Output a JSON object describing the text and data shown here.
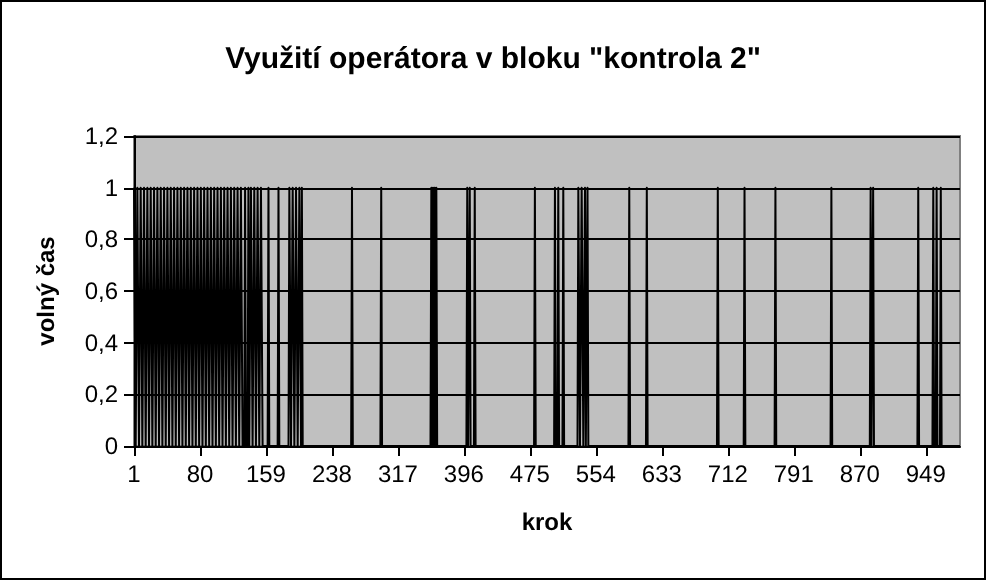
{
  "chart_data": {
    "type": "line",
    "title": "Využití operátora v bloku \"kontrola 2\"",
    "xlabel": "krok",
    "ylabel": "volný čas",
    "x": [
      1,
      3,
      5,
      7,
      9,
      11,
      13,
      15,
      17,
      19,
      21,
      23,
      25,
      27,
      29,
      31,
      33,
      35,
      37,
      39,
      41,
      43,
      45,
      47,
      49,
      51,
      53,
      55,
      57,
      59,
      61,
      63,
      65,
      67,
      69,
      71,
      73,
      75,
      77,
      79,
      81,
      83,
      85,
      87,
      89,
      91,
      93,
      95,
      97,
      99,
      101,
      103,
      105,
      107,
      109,
      111,
      113,
      115,
      117,
      119,
      121,
      123,
      125,
      127,
      129,
      131,
      133,
      134,
      135,
      137,
      138,
      139,
      141,
      143,
      145,
      147,
      149,
      151,
      153,
      155,
      161,
      162,
      163,
      173,
      174,
      175,
      186,
      187,
      189,
      191,
      193,
      195,
      197,
      199,
      201,
      202,
      203,
      261,
      262,
      263,
      296,
      297,
      298,
      356,
      357,
      358,
      359,
      360,
      361,
      362,
      363,
      364,
      399,
      400,
      401,
      402,
      403,
      404,
      408,
      409,
      410,
      480,
      481,
      482,
      504,
      505,
      506,
      508,
      509,
      510,
      514,
      515,
      516,
      532,
      533,
      535,
      537,
      539,
      541,
      542,
      543,
      544,
      545,
      593,
      594,
      595,
      614,
      615,
      616,
      699,
      700,
      701,
      731,
      732,
      733,
      768,
      769,
      770,
      835,
      836,
      837,
      882,
      883,
      884,
      885,
      886,
      887,
      939,
      940,
      941,
      957,
      958,
      959,
      961,
      962,
      963,
      966,
      967,
      968,
      990
    ],
    "series": [
      {
        "color": "#000000",
        "values": [
          1,
          0,
          1,
          0,
          1,
          0,
          1,
          0,
          1,
          0,
          1,
          0,
          1,
          0,
          1,
          0,
          1,
          0,
          1,
          0,
          1,
          0,
          1,
          0,
          1,
          0,
          1,
          0,
          1,
          0,
          1,
          0,
          1,
          0,
          1,
          0,
          1,
          0,
          1,
          0,
          1,
          0,
          1,
          0,
          1,
          0,
          1,
          0,
          1,
          0,
          1,
          0,
          1,
          0,
          1,
          0,
          1,
          0,
          1,
          0,
          1,
          0,
          1,
          0,
          1,
          0,
          0,
          1,
          0,
          0,
          1,
          0,
          1,
          0,
          1,
          0,
          1,
          0,
          1,
          0,
          0,
          1,
          0,
          0,
          1,
          0,
          0,
          1,
          0,
          1,
          0,
          1,
          0,
          1,
          0,
          1,
          0,
          0,
          1,
          0,
          0,
          1,
          0,
          0,
          1,
          0,
          1,
          0,
          1,
          0,
          1,
          0,
          0,
          1,
          0,
          0,
          1,
          0,
          0,
          1,
          0,
          0,
          1,
          0,
          0,
          1,
          0,
          0,
          1,
          0,
          0,
          1,
          0,
          0,
          1,
          0,
          1,
          0,
          1,
          0,
          0,
          1,
          0,
          0,
          1,
          0,
          0,
          1,
          0,
          0,
          1,
          0,
          0,
          1,
          0,
          0,
          1,
          0,
          0,
          1,
          0,
          0,
          1,
          0,
          0,
          1,
          0,
          0,
          1,
          0,
          0,
          1,
          0,
          0,
          1,
          0,
          0,
          1,
          0,
          0
        ]
      }
    ],
    "xlim": [
      1,
      990
    ],
    "xticks": [
      1,
      80,
      159,
      238,
      317,
      396,
      475,
      554,
      633,
      712,
      791,
      870,
      949
    ],
    "ylim": [
      0,
      1.2
    ],
    "yticks": [
      0,
      {
        "value": 0.2,
        "label": "0,2"
      },
      {
        "value": 0.4,
        "label": "0,4"
      },
      {
        "value": 0.6,
        "label": "0,6"
      },
      {
        "value": 0.8,
        "label": "0,8"
      },
      1,
      {
        "value": 1.2,
        "label": "1,2"
      }
    ],
    "grid": "y",
    "marker": "none",
    "line_style": "solid"
  }
}
